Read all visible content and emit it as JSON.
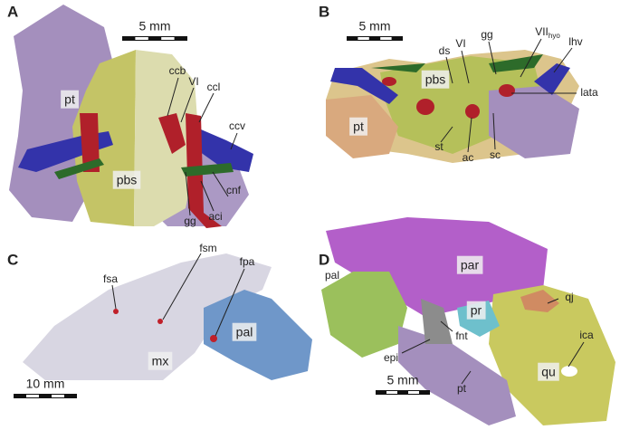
{
  "panels": [
    {
      "letter": "A",
      "scale": "5 mm",
      "labels": [
        "pt",
        "pbs",
        "ccb",
        "VI",
        "ccl",
        "ccv",
        "cnf",
        "gg",
        "aci"
      ]
    },
    {
      "letter": "B",
      "scale": "5 mm",
      "labels": [
        "ds",
        "VI",
        "gg",
        {
          "text": "VII",
          "sub": "hyo"
        },
        "lhv",
        "pbs",
        "lata",
        "pt",
        "st",
        "ac",
        "sc"
      ]
    },
    {
      "letter": "C",
      "scale": "10 mm",
      "labels": [
        "fsa",
        "fsm",
        "fpa",
        "pal",
        "mx"
      ]
    },
    {
      "letter": "D",
      "scale": "5 mm",
      "labels": [
        "par",
        "pal",
        "qj",
        "pr",
        "fnt",
        "epi",
        "ica",
        "qu",
        "pt"
      ]
    }
  ]
}
